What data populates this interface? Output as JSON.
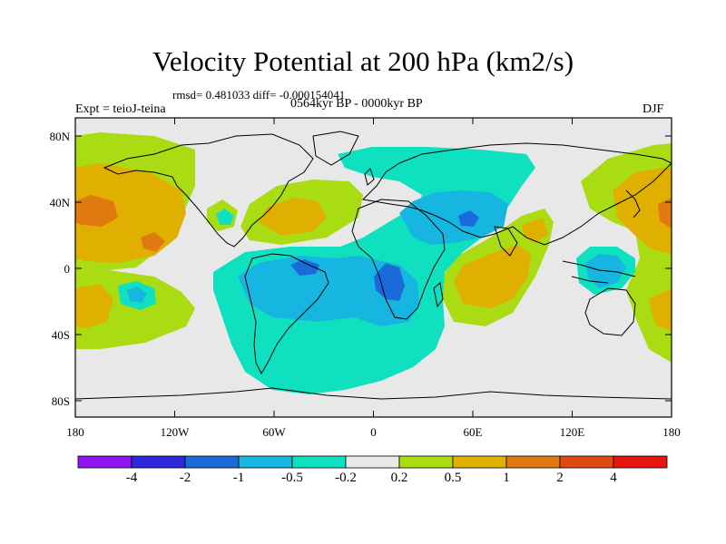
{
  "title": "Velocity Potential at 200 hPa (km2/s)",
  "stats": "rmsd= 0.481033 diff= -0.000154041",
  "experiment": "Expt = teioJ-teina",
  "period": "0564kyr BP - 0000kyr BP",
  "season": "DJF",
  "lat_labels": [
    "80N",
    "40N",
    "0",
    "40S",
    "80S"
  ],
  "lon_labels": [
    "180",
    "120W",
    "60W",
    "0",
    "60E",
    "120E",
    "180"
  ],
  "colorbar": {
    "labels": [
      "-4",
      "-2",
      "-1",
      "-0.5",
      "-0.2",
      "0.2",
      "0.5",
      "1",
      "2",
      "4"
    ],
    "colors": [
      "#8f16ee",
      "#2d28de",
      "#1a6bd9",
      "#16b6e0",
      "#0fe0c0",
      "#e8e8e8",
      "#aadc14",
      "#e0b000",
      "#e07a10",
      "#e04a10",
      "#e81410"
    ]
  },
  "chart_data": {
    "type": "map",
    "projection": "cylindrical equidistant",
    "lon_range": [
      -180,
      180
    ],
    "lat_range": [
      -90,
      90
    ],
    "levels": [
      -4,
      -2,
      -1,
      -0.5,
      -0.2,
      0.2,
      0.5,
      1,
      2,
      4
    ],
    "features": [
      {
        "name": "north pacific positive",
        "lon": -170,
        "lat": 35,
        "value": 1.5
      },
      {
        "name": "south pacific positive",
        "lon": -170,
        "lat": -25,
        "value": 0.8
      },
      {
        "name": "north atlantic positive",
        "lon": -50,
        "lat": 30,
        "value": 0.7
      },
      {
        "name": "indian ocean positive",
        "lon": 75,
        "lat": -10,
        "value": 0.8
      },
      {
        "name": "west pacific positive",
        "lon": 170,
        "lat": 30,
        "value": 1.2
      },
      {
        "name": "south america negative",
        "lon": -45,
        "lat": -5,
        "value": -1.2
      },
      {
        "name": "africa negative",
        "lon": 15,
        "lat": -8,
        "value": -1.2
      },
      {
        "name": "arabia negative",
        "lon": 55,
        "lat": 20,
        "value": -0.8
      },
      {
        "name": "maritime continent negative",
        "lon": 140,
        "lat": -5,
        "value": -0.6
      }
    ]
  }
}
